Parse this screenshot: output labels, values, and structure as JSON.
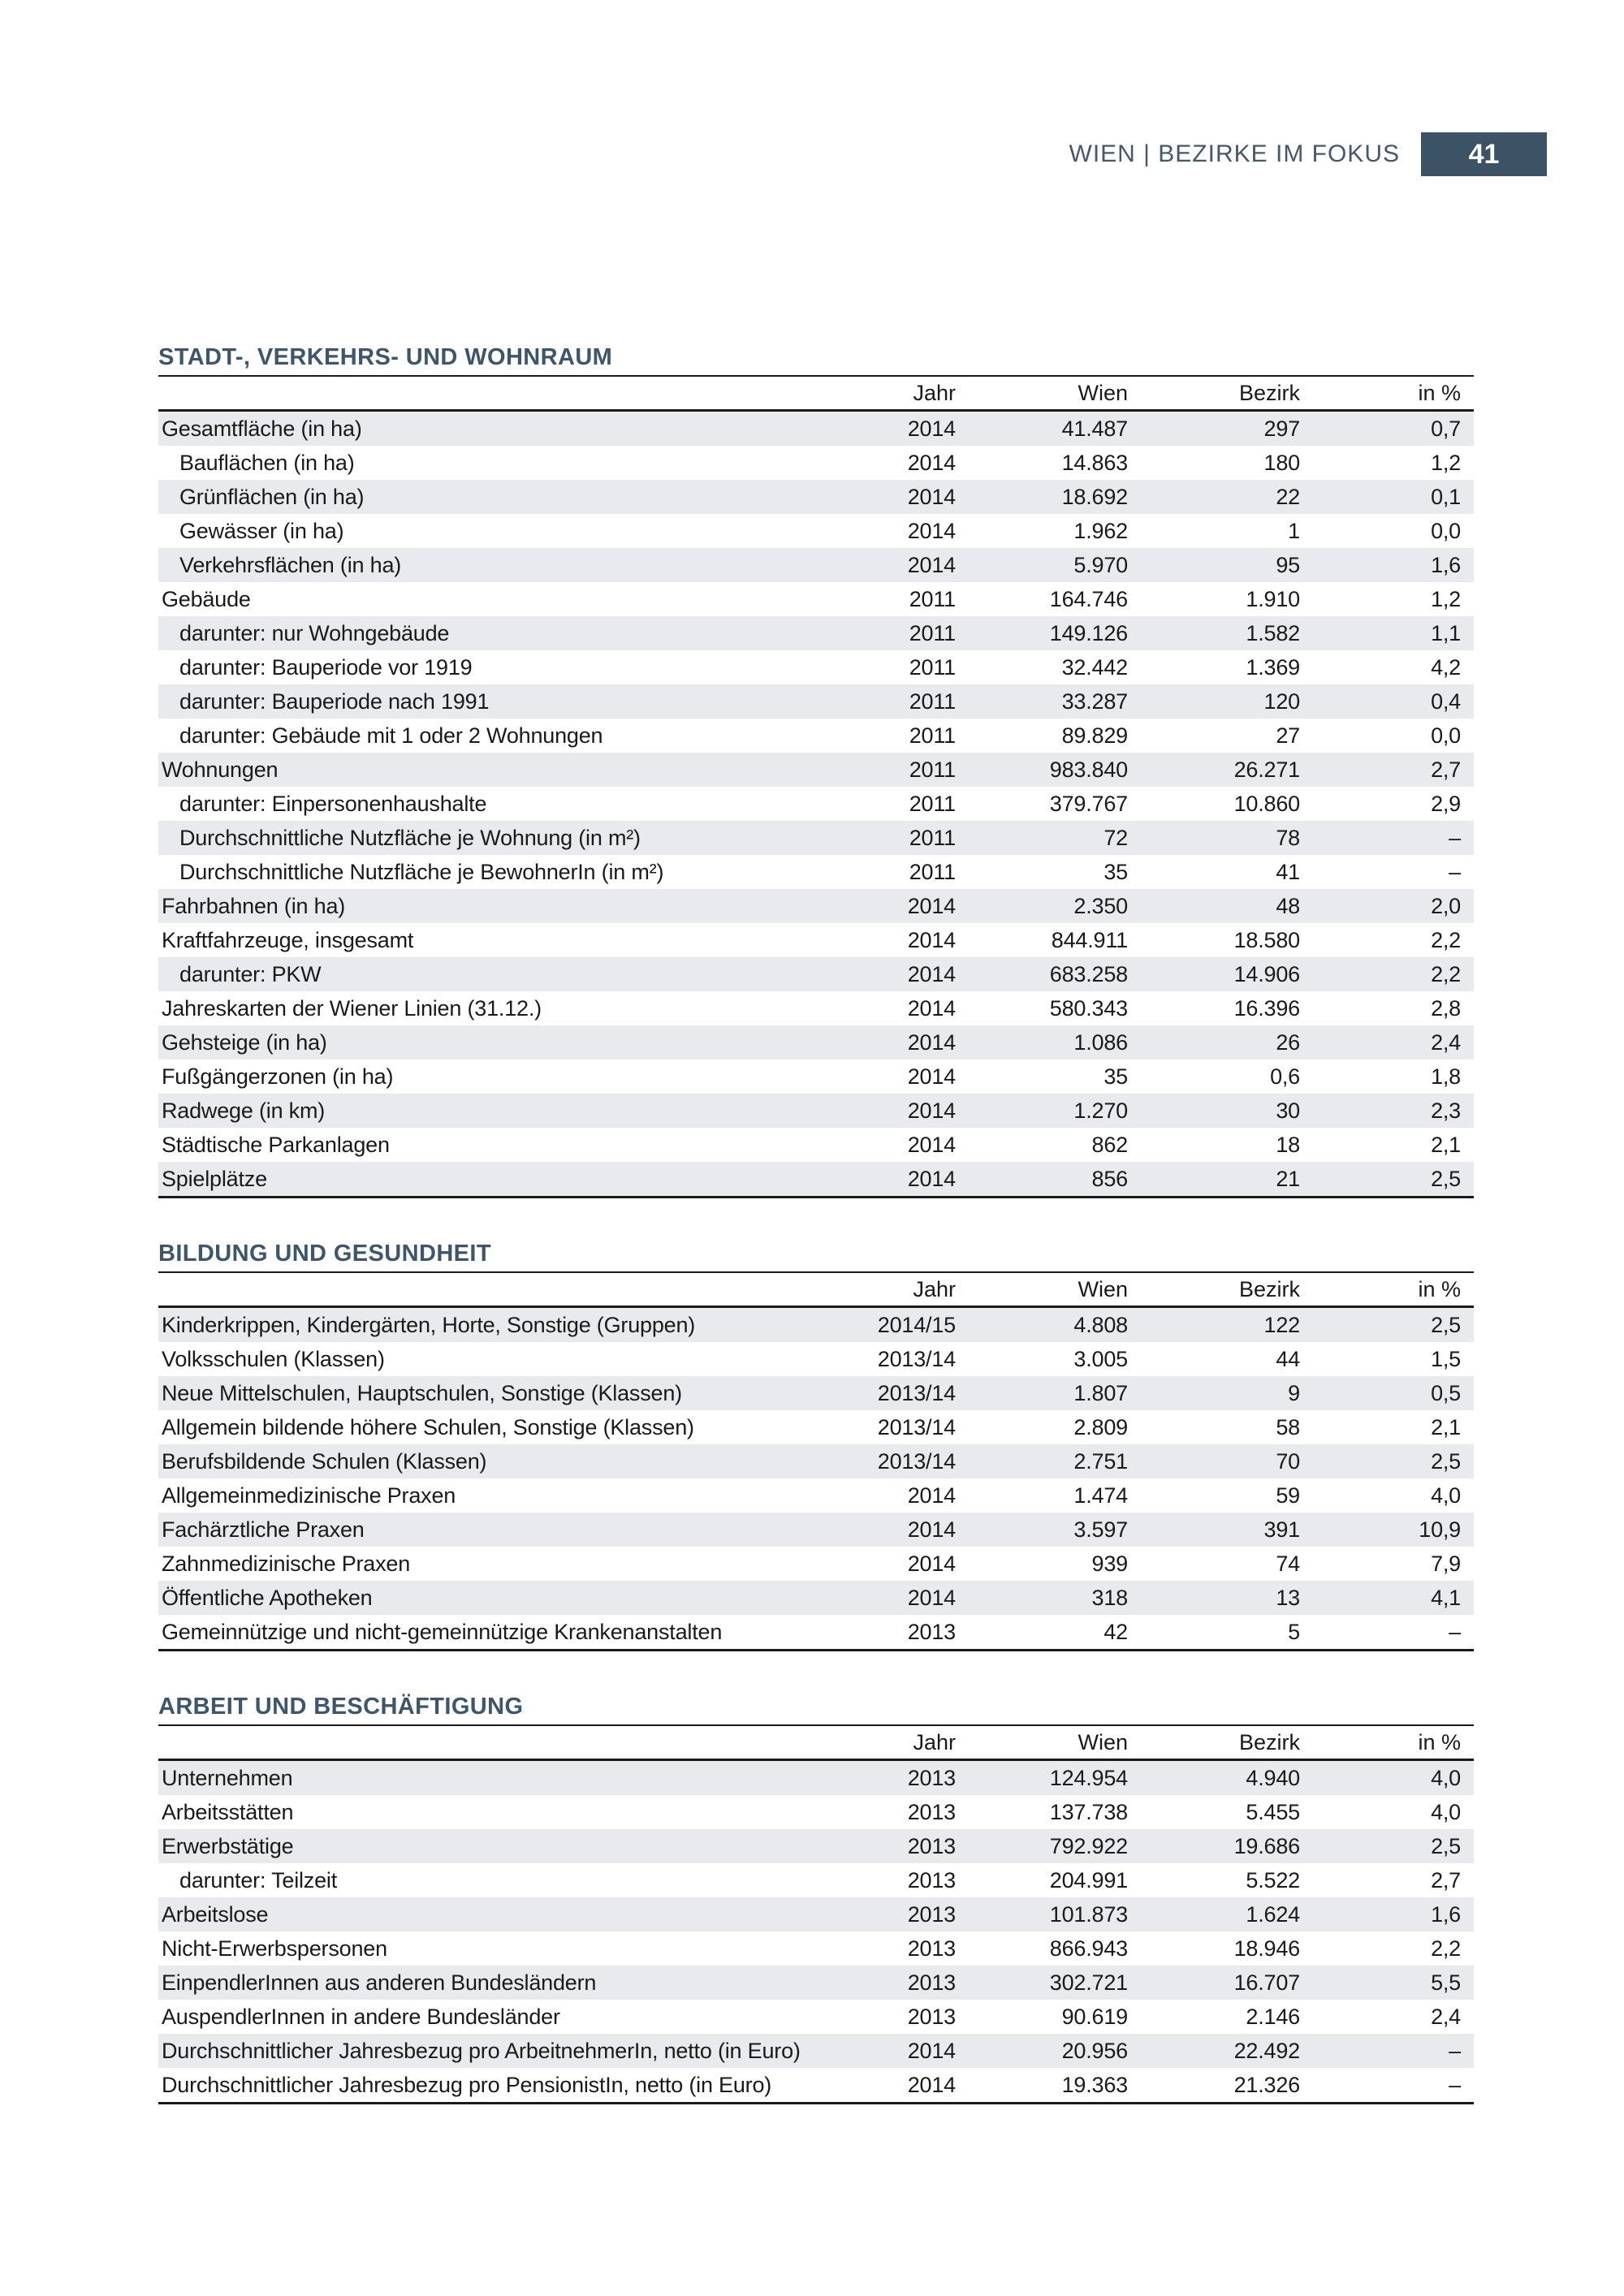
{
  "header": {
    "title": "WIEN | BEZIRKE IM FOKUS",
    "page_number": "41"
  },
  "columns": [
    "Jahr",
    "Wien",
    "Bezirk",
    "in %"
  ],
  "colors": {
    "accent": "#3c5366",
    "section_title": "#3d566b",
    "row_alt_background": "#e8eaed",
    "rule": "#1a1a1a"
  },
  "sections": [
    {
      "title": "STADT-, VERKEHRS- UND WOHNRAUM",
      "rows": [
        {
          "label": "Gesamtfläche (in ha)",
          "indent": false,
          "jahr": "2014",
          "wien": "41.487",
          "bezirk": "297",
          "pct": "0,7"
        },
        {
          "label": "Bauflächen (in ha)",
          "indent": true,
          "jahr": "2014",
          "wien": "14.863",
          "bezirk": "180",
          "pct": "1,2"
        },
        {
          "label": "Grünflächen (in ha)",
          "indent": true,
          "jahr": "2014",
          "wien": "18.692",
          "bezirk": "22",
          "pct": "0,1"
        },
        {
          "label": "Gewässer (in ha)",
          "indent": true,
          "jahr": "2014",
          "wien": "1.962",
          "bezirk": "1",
          "pct": "0,0"
        },
        {
          "label": "Verkehrsflächen (in ha)",
          "indent": true,
          "jahr": "2014",
          "wien": "5.970",
          "bezirk": "95",
          "pct": "1,6"
        },
        {
          "label": "Gebäude",
          "indent": false,
          "jahr": "2011",
          "wien": "164.746",
          "bezirk": "1.910",
          "pct": "1,2"
        },
        {
          "label": "darunter: nur Wohngebäude",
          "indent": true,
          "jahr": "2011",
          "wien": "149.126",
          "bezirk": "1.582",
          "pct": "1,1"
        },
        {
          "label": "darunter: Bauperiode vor 1919",
          "indent": true,
          "jahr": "2011",
          "wien": "32.442",
          "bezirk": "1.369",
          "pct": "4,2"
        },
        {
          "label": "darunter: Bauperiode nach 1991",
          "indent": true,
          "jahr": "2011",
          "wien": "33.287",
          "bezirk": "120",
          "pct": "0,4"
        },
        {
          "label": "darunter: Gebäude mit 1 oder 2 Wohnungen",
          "indent": true,
          "jahr": "2011",
          "wien": "89.829",
          "bezirk": "27",
          "pct": "0,0"
        },
        {
          "label": "Wohnungen",
          "indent": false,
          "jahr": "2011",
          "wien": "983.840",
          "bezirk": "26.271",
          "pct": "2,7"
        },
        {
          "label": "darunter: Einpersonenhaushalte",
          "indent": true,
          "jahr": "2011",
          "wien": "379.767",
          "bezirk": "10.860",
          "pct": "2,9"
        },
        {
          "label": "Durchschnittliche Nutzfläche je Wohnung (in m²)",
          "indent": true,
          "jahr": "2011",
          "wien": "72",
          "bezirk": "78",
          "pct": "–"
        },
        {
          "label": "Durchschnittliche Nutzfläche je BewohnerIn (in m²)",
          "indent": true,
          "jahr": "2011",
          "wien": "35",
          "bezirk": "41",
          "pct": "–"
        },
        {
          "label": "Fahrbahnen (in ha)",
          "indent": false,
          "jahr": "2014",
          "wien": "2.350",
          "bezirk": "48",
          "pct": "2,0"
        },
        {
          "label": "Kraftfahrzeuge, insgesamt",
          "indent": false,
          "jahr": "2014",
          "wien": "844.911",
          "bezirk": "18.580",
          "pct": "2,2"
        },
        {
          "label": "darunter: PKW",
          "indent": true,
          "jahr": "2014",
          "wien": "683.258",
          "bezirk": "14.906",
          "pct": "2,2"
        },
        {
          "label": "Jahreskarten der Wiener Linien (31.12.)",
          "indent": false,
          "jahr": "2014",
          "wien": "580.343",
          "bezirk": "16.396",
          "pct": "2,8"
        },
        {
          "label": "Gehsteige (in ha)",
          "indent": false,
          "jahr": "2014",
          "wien": "1.086",
          "bezirk": "26",
          "pct": "2,4"
        },
        {
          "label": "Fußgängerzonen (in ha)",
          "indent": false,
          "jahr": "2014",
          "wien": "35",
          "bezirk": "0,6",
          "pct": "1,8"
        },
        {
          "label": "Radwege (in km)",
          "indent": false,
          "jahr": "2014",
          "wien": "1.270",
          "bezirk": "30",
          "pct": "2,3"
        },
        {
          "label": "Städtische Parkanlagen",
          "indent": false,
          "jahr": "2014",
          "wien": "862",
          "bezirk": "18",
          "pct": "2,1"
        },
        {
          "label": "Spielplätze",
          "indent": false,
          "jahr": "2014",
          "wien": "856",
          "bezirk": "21",
          "pct": "2,5"
        }
      ]
    },
    {
      "title": "BILDUNG UND GESUNDHEIT",
      "rows": [
        {
          "label": "Kinderkrippen, Kindergärten, Horte, Sonstige (Gruppen)",
          "indent": false,
          "jahr": "2014/15",
          "wien": "4.808",
          "bezirk": "122",
          "pct": "2,5"
        },
        {
          "label": "Volksschulen (Klassen)",
          "indent": false,
          "jahr": "2013/14",
          "wien": "3.005",
          "bezirk": "44",
          "pct": "1,5"
        },
        {
          "label": "Neue Mittelschulen, Hauptschulen, Sonstige (Klassen)",
          "indent": false,
          "jahr": "2013/14",
          "wien": "1.807",
          "bezirk": "9",
          "pct": "0,5"
        },
        {
          "label": "Allgemein bildende höhere Schulen, Sonstige (Klassen)",
          "indent": false,
          "jahr": "2013/14",
          "wien": "2.809",
          "bezirk": "58",
          "pct": "2,1"
        },
        {
          "label": "Berufsbildende Schulen (Klassen)",
          "indent": false,
          "jahr": "2013/14",
          "wien": "2.751",
          "bezirk": "70",
          "pct": "2,5"
        },
        {
          "label": "Allgemeinmedizinische Praxen",
          "indent": false,
          "jahr": "2014",
          "wien": "1.474",
          "bezirk": "59",
          "pct": "4,0"
        },
        {
          "label": "Fachärztliche Praxen",
          "indent": false,
          "jahr": "2014",
          "wien": "3.597",
          "bezirk": "391",
          "pct": "10,9"
        },
        {
          "label": "Zahnmedizinische Praxen",
          "indent": false,
          "jahr": "2014",
          "wien": "939",
          "bezirk": "74",
          "pct": "7,9"
        },
        {
          "label": "Öffentliche Apotheken",
          "indent": false,
          "jahr": "2014",
          "wien": "318",
          "bezirk": "13",
          "pct": "4,1"
        },
        {
          "label": "Gemeinnützige und nicht-gemeinnützige Krankenanstalten",
          "indent": false,
          "jahr": "2013",
          "wien": "42",
          "bezirk": "5",
          "pct": "–"
        }
      ]
    },
    {
      "title": "ARBEIT UND BESCHÄFTIGUNG",
      "rows": [
        {
          "label": "Unternehmen",
          "indent": false,
          "jahr": "2013",
          "wien": "124.954",
          "bezirk": "4.940",
          "pct": "4,0"
        },
        {
          "label": "Arbeitsstätten",
          "indent": false,
          "jahr": "2013",
          "wien": "137.738",
          "bezirk": "5.455",
          "pct": "4,0"
        },
        {
          "label": "Erwerbstätige",
          "indent": false,
          "jahr": "2013",
          "wien": "792.922",
          "bezirk": "19.686",
          "pct": "2,5"
        },
        {
          "label": "darunter: Teilzeit",
          "indent": true,
          "jahr": "2013",
          "wien": "204.991",
          "bezirk": "5.522",
          "pct": "2,7"
        },
        {
          "label": "Arbeitslose",
          "indent": false,
          "jahr": "2013",
          "wien": "101.873",
          "bezirk": "1.624",
          "pct": "1,6"
        },
        {
          "label": "Nicht-Erwerbspersonen",
          "indent": false,
          "jahr": "2013",
          "wien": "866.943",
          "bezirk": "18.946",
          "pct": "2,2"
        },
        {
          "label": "EinpendlerInnen aus anderen Bundesländern",
          "indent": false,
          "jahr": "2013",
          "wien": "302.721",
          "bezirk": "16.707",
          "pct": "5,5"
        },
        {
          "label": "AuspendlerInnen in andere Bundesländer",
          "indent": false,
          "jahr": "2013",
          "wien": "90.619",
          "bezirk": "2.146",
          "pct": "2,4"
        },
        {
          "label": "Durchschnittlicher Jahresbezug pro ArbeitnehmerIn, netto (in Euro)",
          "indent": false,
          "jahr": "2014",
          "wien": "20.956",
          "bezirk": "22.492",
          "pct": "–"
        },
        {
          "label": "Durchschnittlicher Jahresbezug pro PensionistIn, netto (in Euro)",
          "indent": false,
          "jahr": "2014",
          "wien": "19.363",
          "bezirk": "21.326",
          "pct": "–"
        }
      ]
    }
  ]
}
